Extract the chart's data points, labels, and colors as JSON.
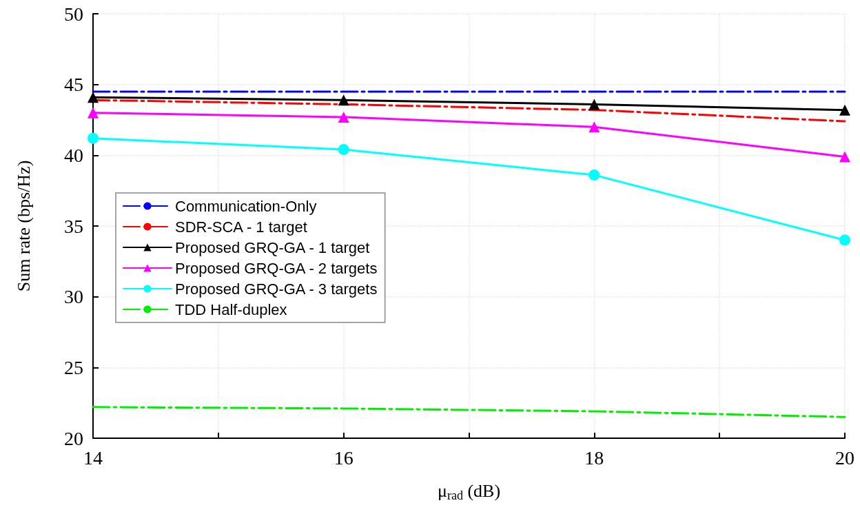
{
  "chart_data": {
    "type": "line",
    "xlabel": "μ$_{rad}$ (dB)",
    "ylabel": "Sum rate (bps/Hz)",
    "x": [
      14,
      16,
      18,
      20
    ],
    "xlim": [
      14,
      20
    ],
    "xticks": [
      14,
      {
        "value": 15,
        "label": null
      },
      16,
      {
        "value": 17,
        "label": null
      },
      18,
      {
        "value": 19,
        "label": null
      },
      20
    ],
    "ylim": [
      20,
      50
    ],
    "yticks": [
      20,
      25,
      30,
      35,
      40,
      45,
      50
    ],
    "grid": true,
    "legend": "left",
    "series": [
      {
        "name": "Communication-Only",
        "color": "#0000ff",
        "values": [
          44.5,
          44.5,
          44.5,
          44.5
        ],
        "line_style": "dashed",
        "marker": "none"
      },
      {
        "name": "SDR-SCA - 1 target",
        "color": "#ff0000",
        "values": [
          43.9,
          43.6,
          43.2,
          42.4
        ],
        "line_style": "dashed",
        "marker": "none"
      },
      {
        "name": "Proposed GRQ-GA - 1 target",
        "color": "#000000",
        "values": [
          44.1,
          43.9,
          43.6,
          43.2
        ],
        "line_style": "solid",
        "marker": "triangle"
      },
      {
        "name": "Proposed GRQ-GA - 2 targets",
        "color": "#ff00ff",
        "values": [
          43.0,
          42.7,
          42.0,
          39.9
        ],
        "line_style": "solid",
        "marker": "triangle"
      },
      {
        "name": "Proposed GRQ-GA - 3 targets",
        "color": "#00ffff",
        "values": [
          41.2,
          40.4,
          38.6,
          34.0
        ],
        "line_style": "solid",
        "marker": "circle"
      },
      {
        "name": "TDD Half-duplex",
        "color": "#00ee00",
        "values": [
          22.2,
          22.1,
          21.9,
          21.5
        ],
        "line_style": "dashed",
        "marker": "none"
      }
    ]
  }
}
